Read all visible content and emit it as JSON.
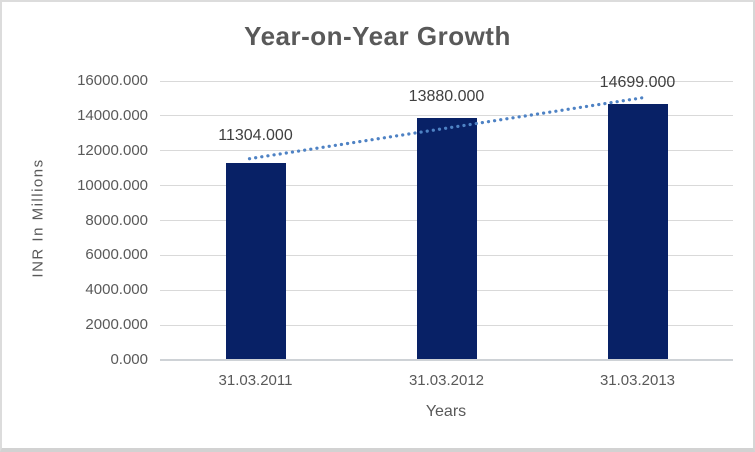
{
  "chart_data": {
    "type": "bar",
    "title": "Year-on-Year Growth",
    "xlabel": "Years",
    "ylabel": "INR In Millions",
    "categories": [
      "31.03.2011",
      "31.03.2012",
      "31.03.2013"
    ],
    "values": [
      11304,
      13880,
      14699
    ],
    "data_labels": [
      "11304.000",
      "13880.000",
      "14699.000"
    ],
    "y_ticks": [
      "0.000",
      "2000.000",
      "4000.000",
      "6000.000",
      "8000.000",
      "10000.000",
      "12000.000",
      "14000.000",
      "16000.000"
    ],
    "ylim": [
      0,
      16000
    ],
    "y_tick_step": 2000,
    "grid": true,
    "legend": false,
    "trendline": {
      "style": "dotted",
      "fit": "linear"
    },
    "colors": {
      "bar": "#082166",
      "trendline": "#4e82c4",
      "gridline": "#d9d9d9",
      "axis_line": "#ced2d6",
      "title_text": "#595959",
      "tick_text": "#595959",
      "data_label_text": "#404040"
    }
  }
}
